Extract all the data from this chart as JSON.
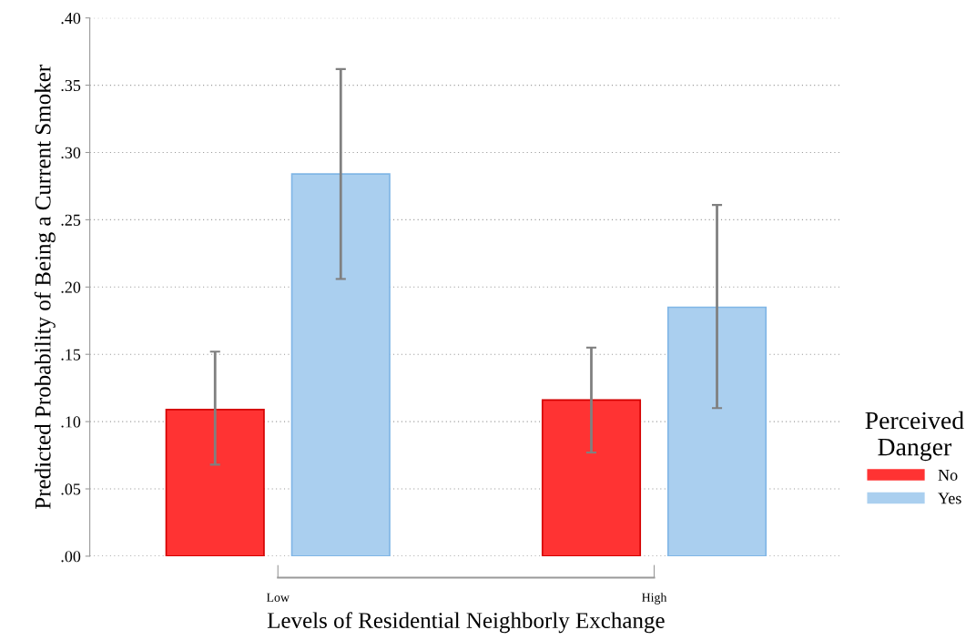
{
  "chart_data": {
    "type": "bar",
    "xlabel": "Levels of Residential Neighborly Exchange",
    "ylabel": "Predicted Probability of Being a Current Smoker",
    "legend_title": "Perceived\nDanger",
    "categories": [
      "Low",
      "High"
    ],
    "series": [
      {
        "name": "No",
        "color": "#ff3333",
        "values": [
          0.109,
          0.116
        ],
        "errors": [
          [
            0.068,
            0.152
          ],
          [
            0.077,
            0.155
          ]
        ]
      },
      {
        "name": "Yes",
        "color": "#aacfef",
        "values": [
          0.284,
          0.185
        ],
        "errors": [
          [
            0.206,
            0.362
          ],
          [
            0.11,
            0.261
          ]
        ]
      }
    ],
    "ylim": [
      0,
      0.4
    ],
    "yticks": [
      {
        "value": 0,
        "label": ".00"
      },
      {
        "value": 0.05,
        "label": ".05"
      },
      {
        "value": 0.1,
        "label": ".10"
      },
      {
        "value": 0.15,
        "label": ".15"
      },
      {
        "value": 0.2,
        "label": ".20"
      },
      {
        "value": 0.25,
        "label": ".25"
      },
      {
        "value": 0.3,
        "label": ".30"
      },
      {
        "value": 0.35,
        "label": ".35"
      },
      {
        "value": 0.4,
        "label": ".40"
      }
    ],
    "grid": "y",
    "legend": "right"
  }
}
